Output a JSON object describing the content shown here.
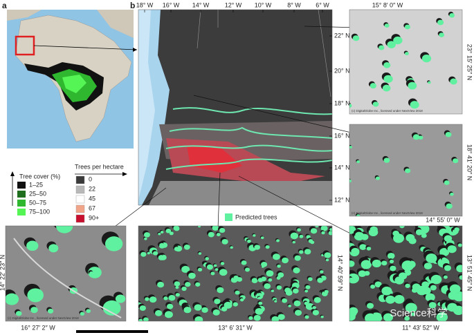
{
  "panel_a": {
    "label": "a",
    "tree_cover": {
      "title": "Tree cover (%)",
      "items": [
        {
          "label": "1–25",
          "color": "#111111"
        },
        {
          "label": "25–50",
          "color": "#1e6e1e"
        },
        {
          "label": "50–75",
          "color": "#2fb82f"
        },
        {
          "label": "75–100",
          "color": "#55f555"
        }
      ]
    },
    "trees_per_hectare": {
      "title": "Trees per hectare",
      "items": [
        {
          "label": "0",
          "color": "#3a3a3a"
        },
        {
          "label": "22",
          "color": "#b8b8b8"
        },
        {
          "label": "45",
          "color": "#ffffff"
        },
        {
          "label": "67",
          "color": "#f2a488"
        },
        {
          "label": "90+",
          "color": "#c8102e"
        }
      ]
    }
  },
  "panel_b": {
    "label": "b",
    "longitudes": [
      "18° W",
      "16° W",
      "14° W",
      "12° W",
      "10° W",
      "8° W",
      "6° W"
    ],
    "latitudes": [
      "22° N",
      "20° N",
      "18° N",
      "16° N",
      "14° N",
      "12° N"
    ],
    "legend": {
      "label": "Predicted trees",
      "color": "#5ff0a0"
    },
    "insets": {
      "top_right": {
        "lon": "15° 8′ 0″ W",
        "lat": "23° 15′ 25″ N",
        "credit": "(c) DigitalGlobe Inc., licensed under NextView 2018"
      },
      "middle_right": {
        "lon": "14° 55′ 0″ W",
        "lat": "18° 41′ 20″ N",
        "credit": "(c) DigitalGlobe Inc., licensed under NextView 2018"
      },
      "bottom_left": {
        "lon": "16° 27′ 2″ W",
        "lat": "14° 22′ 23″ N",
        "credit": "(c) DigitalGlobe Inc., licensed under NextView 2018"
      },
      "bottom_middle": {
        "lon": "13° 6′ 31″ W",
        "lat": "14° 40′ 59″ N"
      },
      "bottom_right": {
        "lon": "11° 43′ 52″ W",
        "lat": "13° 51′ 45″ N"
      }
    },
    "watermark": "Science科学"
  }
}
